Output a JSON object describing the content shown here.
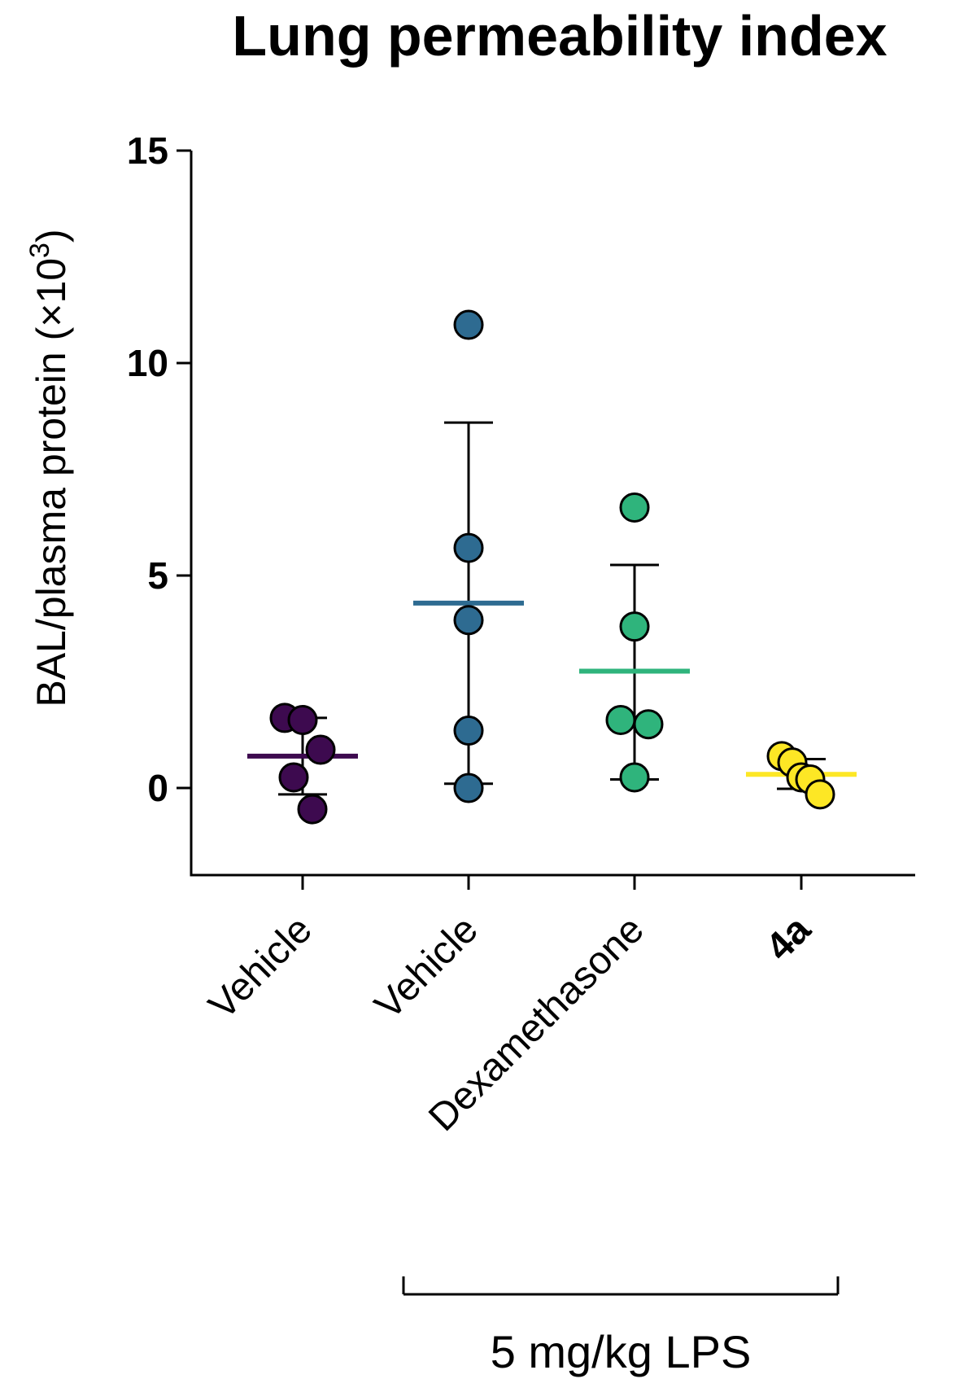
{
  "chart_data": {
    "type": "scatter",
    "title": "Lung permeability index",
    "ylabel": "BAL/plasma protein (×10",
    "ylabel_superscript": "3",
    "ylabel_close": ")",
    "ylim": [
      -2,
      15
    ],
    "yticks": [
      0,
      5,
      10,
      15
    ],
    "categories": [
      "Vehicle",
      "Vehicle",
      "Dexamethasone",
      "4a"
    ],
    "groups": [
      {
        "name": "Vehicle",
        "label_bold": false,
        "color": "#3d0a4f",
        "mean": 0.75,
        "sd_upper": 1.65,
        "sd_lower": -0.15,
        "points": [
          {
            "offset": -0.22,
            "y": 1.65
          },
          {
            "offset": 0.0,
            "y": 1.6
          },
          {
            "offset": 0.22,
            "y": 0.9
          },
          {
            "offset": -0.11,
            "y": 0.25
          },
          {
            "offset": 0.12,
            "y": -0.5
          }
        ]
      },
      {
        "name": "Vehicle",
        "label_bold": false,
        "color": "#2e6b91",
        "mean": 4.35,
        "sd_upper": 8.6,
        "sd_lower": 0.1,
        "points": [
          {
            "offset": 0.0,
            "y": 10.9
          },
          {
            "offset": 0.0,
            "y": 5.65
          },
          {
            "offset": 0.0,
            "y": 3.95
          },
          {
            "offset": 0.0,
            "y": 1.35
          },
          {
            "offset": 0.0,
            "y": 0.0
          }
        ]
      },
      {
        "name": "Dexamethasone",
        "label_bold": false,
        "color": "#2fb47c",
        "mean": 2.75,
        "sd_upper": 5.25,
        "sd_lower": 0.2,
        "points": [
          {
            "offset": 0.0,
            "y": 6.6
          },
          {
            "offset": 0.0,
            "y": 3.8
          },
          {
            "offset": -0.17,
            "y": 1.6
          },
          {
            "offset": 0.17,
            "y": 1.5
          },
          {
            "offset": 0.0,
            "y": 0.25
          }
        ]
      },
      {
        "name": "4a",
        "label_bold": true,
        "color": "#fde725",
        "mean": 0.32,
        "sd_upper": 0.68,
        "sd_lower": -0.02,
        "points": [
          {
            "offset": -0.24,
            "y": 0.75
          },
          {
            "offset": -0.11,
            "y": 0.6
          },
          {
            "offset": 0.0,
            "y": 0.25
          },
          {
            "offset": 0.11,
            "y": 0.2
          },
          {
            "offset": 0.23,
            "y": -0.15
          }
        ]
      }
    ],
    "bracket": {
      "label": "5 mg/kg LPS",
      "from_group": 1,
      "to_group": 3
    }
  }
}
